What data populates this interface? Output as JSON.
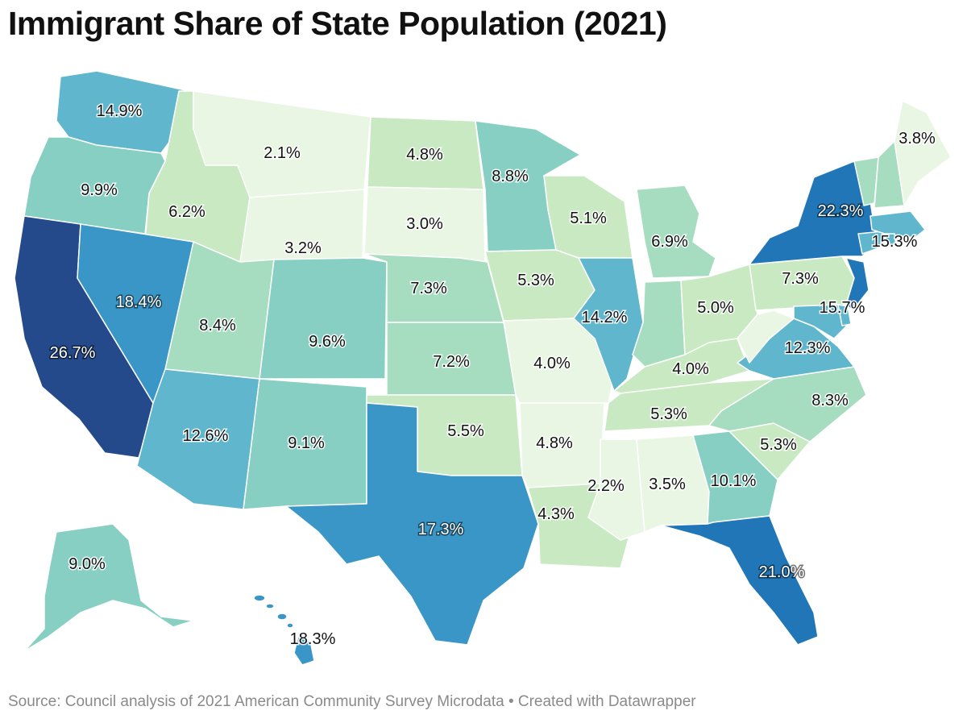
{
  "title": "Immigrant Share of State Population (2021)",
  "source": "Source: Council analysis of 2021 American Community Survey Microdata • Created with Datawrapper",
  "colors": {
    "scale": [
      "#e8f6e3",
      "#c9e9c3",
      "#a6dcc0",
      "#86cfc2",
      "#5fb6cd",
      "#3a96c6",
      "#2076b6",
      "#244a8c"
    ]
  },
  "states": [
    {
      "id": "WA",
      "value": "14.9%"
    },
    {
      "id": "OR",
      "value": "9.9%"
    },
    {
      "id": "CA",
      "value": "26.7%"
    },
    {
      "id": "ID",
      "value": "6.2%"
    },
    {
      "id": "NV",
      "value": "18.4%"
    },
    {
      "id": "MT",
      "value": "2.1%"
    },
    {
      "id": "WY",
      "value": "3.2%"
    },
    {
      "id": "UT",
      "value": "8.4%"
    },
    {
      "id": "CO",
      "value": "9.6%"
    },
    {
      "id": "AZ",
      "value": "12.6%"
    },
    {
      "id": "NM",
      "value": "9.1%"
    },
    {
      "id": "ND",
      "value": "4.8%"
    },
    {
      "id": "SD",
      "value": "3.0%"
    },
    {
      "id": "NE",
      "value": "7.3%"
    },
    {
      "id": "KS",
      "value": "7.2%"
    },
    {
      "id": "OK",
      "value": "5.5%"
    },
    {
      "id": "TX",
      "value": "17.3%"
    },
    {
      "id": "MN",
      "value": "8.8%"
    },
    {
      "id": "IA",
      "value": "5.3%"
    },
    {
      "id": "MO",
      "value": "4.0%"
    },
    {
      "id": "AR",
      "value": "4.8%"
    },
    {
      "id": "LA",
      "value": "4.3%"
    },
    {
      "id": "WI",
      "value": "5.1%"
    },
    {
      "id": "IL",
      "value": "14.2%"
    },
    {
      "id": "MI",
      "value": "6.9%"
    },
    {
      "id": "IN",
      "value": ""
    },
    {
      "id": "OH",
      "value": "5.0%"
    },
    {
      "id": "KY",
      "value": "4.0%"
    },
    {
      "id": "TN",
      "value": "5.3%"
    },
    {
      "id": "MS",
      "value": "2.2%"
    },
    {
      "id": "AL",
      "value": "3.5%"
    },
    {
      "id": "GA",
      "value": "10.1%"
    },
    {
      "id": "FL",
      "value": "21.0%"
    },
    {
      "id": "SC",
      "value": "5.3%"
    },
    {
      "id": "NC",
      "value": "8.3%"
    },
    {
      "id": "VA",
      "value": "12.3%"
    },
    {
      "id": "WV",
      "value": ""
    },
    {
      "id": "PA",
      "value": "7.3%"
    },
    {
      "id": "NY",
      "value": "22.3%"
    },
    {
      "id": "NJ",
      "value": ""
    },
    {
      "id": "MD",
      "value": "15.7%"
    },
    {
      "id": "DE",
      "value": ""
    },
    {
      "id": "CT",
      "value": ""
    },
    {
      "id": "MA",
      "value": "15.3%"
    },
    {
      "id": "RI",
      "value": ""
    },
    {
      "id": "VT",
      "value": ""
    },
    {
      "id": "NH",
      "value": ""
    },
    {
      "id": "ME",
      "value": "3.8%"
    },
    {
      "id": "AK",
      "value": "9.0%"
    },
    {
      "id": "HI",
      "value": "18.3%"
    }
  ]
}
